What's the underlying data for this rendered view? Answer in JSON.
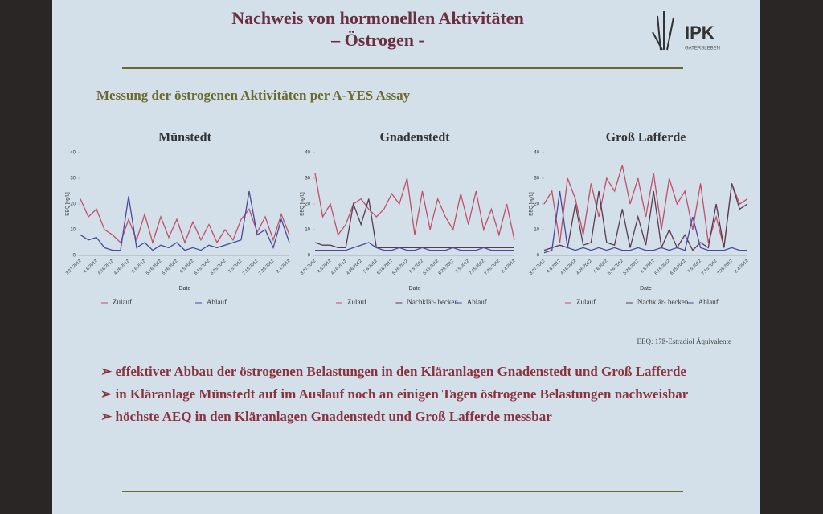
{
  "header": {
    "title": [
      "Nachweis von hormonellen Aktivitäten",
      "– Östrogen -"
    ],
    "logo": "IPK",
    "logo_sub": "GATERSLEBEN"
  },
  "subtitle": "Messung der östrogenen Aktivitäten per A-YES Assay",
  "chart_data": [
    {
      "type": "line",
      "title": "Münstedt",
      "xlabel": "Date",
      "ylabel": "EEQ [ng/L]",
      "ylim": [
        0,
        40
      ],
      "yticks": [
        0,
        10,
        20,
        30,
        40
      ],
      "categories": [
        "3.27.2012",
        null,
        "4.6.2012",
        null,
        "4.16.2012",
        null,
        "4.26.2012",
        null,
        "5.6.2012",
        null,
        "5.16.2012",
        null,
        "5.26.2012",
        null,
        "6.5.2012",
        null,
        "6.15.2012",
        null,
        "6.25.2012",
        null,
        "7.5.2012",
        null,
        "7.15.2012",
        null,
        "7.25.2012",
        null,
        "8.4.2012"
      ],
      "series": [
        {
          "name": "Zulauf",
          "color": "#c0506a",
          "values": [
            22,
            15,
            18,
            10,
            8,
            5,
            14,
            6,
            16,
            5,
            15,
            7,
            14,
            5,
            13,
            6,
            12,
            5,
            10,
            6,
            14,
            18,
            9,
            15,
            6,
            16,
            8
          ]
        },
        {
          "name": "Ablauf",
          "color": "#4a4a9a",
          "values": [
            8,
            6,
            7,
            3,
            2,
            2,
            23,
            3,
            5,
            2,
            4,
            3,
            5,
            2,
            3,
            2,
            4,
            3,
            4,
            5,
            6,
            25,
            8,
            10,
            3,
            14,
            5
          ]
        }
      ]
    },
    {
      "type": "line",
      "title": "Gnadenstedt",
      "xlabel": "Date",
      "ylabel": "EEQ [ng/L]",
      "ylim": [
        0,
        40
      ],
      "yticks": [
        0,
        10,
        20,
        30,
        40
      ],
      "categories": [
        "3.27.2012",
        null,
        "4.6.2012",
        null,
        "4.16.2012",
        null,
        "4.26.2012",
        null,
        "5.6.2012",
        null,
        "5.16.2012",
        null,
        "5.26.2012",
        null,
        "6.5.2012",
        null,
        "6.15.2012",
        null,
        "6.25.2012",
        null,
        "7.5.2012",
        null,
        "7.15.2012",
        null,
        "7.25.2012",
        null,
        "8.4.2012"
      ],
      "series": [
        {
          "name": "Zulauf",
          "color": "#c0506a",
          "values": [
            32,
            15,
            20,
            8,
            12,
            20,
            22,
            18,
            15,
            18,
            24,
            20,
            30,
            8,
            25,
            10,
            22,
            15,
            10,
            24,
            12,
            25,
            10,
            18,
            8,
            20,
            6
          ]
        },
        {
          "name": "Nachklär- becken",
          "color": "#5a3a50",
          "values": [
            5,
            4,
            4,
            3,
            3,
            20,
            12,
            22,
            3,
            3,
            3,
            3,
            3,
            3,
            3,
            3,
            3,
            3,
            3,
            3,
            3,
            3,
            3,
            3,
            3,
            3,
            3
          ]
        },
        {
          "name": "Ablauf",
          "color": "#4a4a9a",
          "values": [
            2,
            2,
            2,
            2,
            2,
            3,
            4,
            5,
            3,
            2,
            2,
            3,
            2,
            2,
            3,
            2,
            2,
            2,
            3,
            2,
            2,
            2,
            3,
            2,
            2,
            2,
            2
          ]
        }
      ]
    },
    {
      "type": "line",
      "title": "Groß Lafferde",
      "xlabel": "Date",
      "ylabel": "EEQ [ng/L]",
      "ylim": [
        0,
        40
      ],
      "yticks": [
        0,
        10,
        20,
        30,
        40
      ],
      "categories": [
        "3.27.2012",
        null,
        "4.6.2012",
        null,
        "4.16.2012",
        null,
        "4.26.2012",
        null,
        "5.6.2012",
        null,
        "5.16.2012",
        null,
        "5.26.2012",
        null,
        "6.5.2012",
        null,
        "6.15.2012",
        null,
        "6.25.2012",
        null,
        "7.5.2012",
        null,
        "7.15.2012",
        null,
        "7.25.2012",
        null,
        "8.4.2012"
      ],
      "series": [
        {
          "name": "Zulauf",
          "color": "#c0506a",
          "values": [
            20,
            25,
            5,
            30,
            22,
            8,
            28,
            15,
            30,
            25,
            35,
            20,
            30,
            15,
            32,
            10,
            30,
            20,
            25,
            10,
            28,
            5,
            15,
            3,
            28,
            20,
            22
          ]
        },
        {
          "name": "Nachklär- becken",
          "color": "#5a3a50",
          "values": [
            2,
            3,
            4,
            3,
            20,
            4,
            5,
            25,
            5,
            4,
            18,
            3,
            15,
            4,
            25,
            3,
            10,
            3,
            8,
            2,
            5,
            3,
            20,
            3,
            28,
            18,
            20
          ]
        },
        {
          "name": "Ablauf",
          "color": "#4a4a9a",
          "values": [
            1,
            2,
            25,
            3,
            2,
            3,
            2,
            3,
            2,
            3,
            2,
            2,
            3,
            2,
            2,
            3,
            2,
            3,
            2,
            15,
            3,
            2,
            2,
            2,
            3,
            2,
            2
          ]
        }
      ]
    }
  ],
  "note": "EEQ: 17ß-Estradiol Äquivalente",
  "bullets": [
    "effektiver Abbau der östrogenen Belastungen in den Kläranlagen Gnadenstedt und Groß Lafferde",
    "in Kläranlage Münstedt auf im Auslauf noch an einigen Tagen östrogene Belastungen nachweisbar",
    "höchste AEQ in den Kläranlagen Gnadenstedt und Groß Lafferde messbar"
  ]
}
